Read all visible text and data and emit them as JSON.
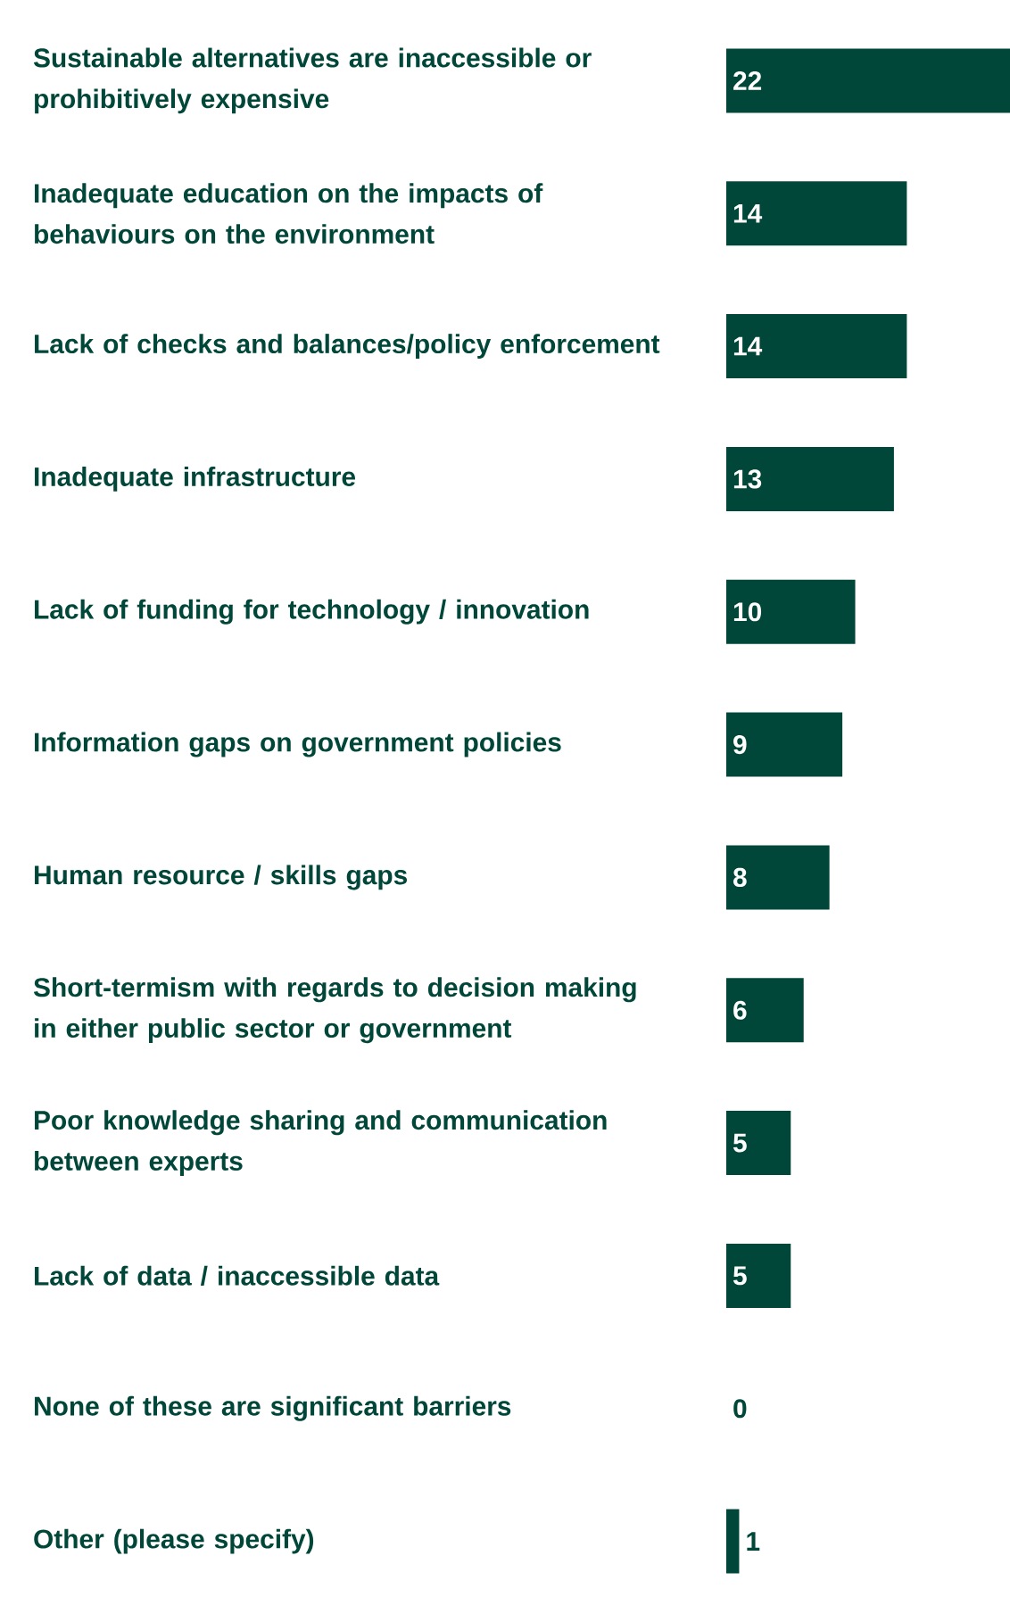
{
  "chart_data": {
    "type": "bar",
    "orientation": "horizontal",
    "data_labels": true,
    "color": "#00473a",
    "categories": [
      "Sustainable alternatives are inaccessible or prohibitively expensive",
      "Inadequate education on the impacts of behaviours on the environment",
      "Lack of checks and balances/policy enforcement",
      "Inadequate infrastructure",
      "Lack of funding for technology / innovation",
      "Information gaps on government policies",
      "Human resource / skills gaps",
      "Short-termism with regards to decision making in either public sector or government",
      "Poor knowledge sharing and communication between experts",
      "Lack of data / inaccessible data",
      "None of these are significant barriers",
      "Other (please specify)"
    ],
    "values": [
      22,
      14,
      14,
      13,
      10,
      9,
      8,
      6,
      5,
      5,
      0,
      1
    ]
  }
}
